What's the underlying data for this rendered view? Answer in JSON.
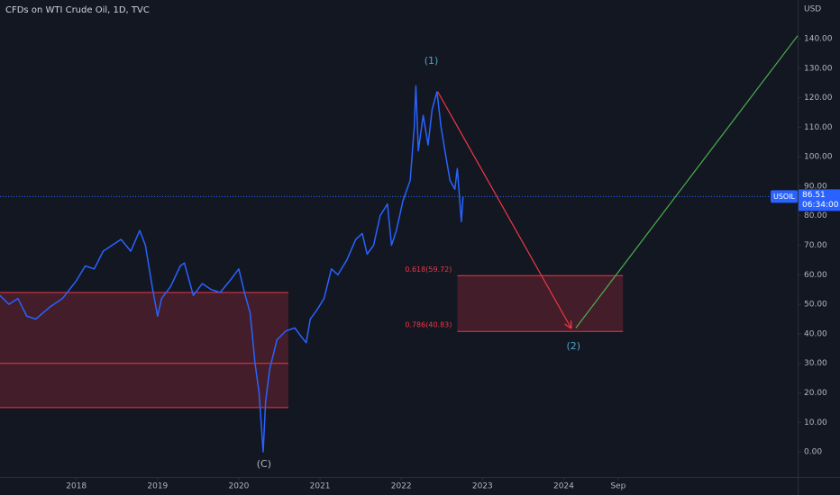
{
  "chart_data": {
    "type": "line",
    "title": "CFDs on WTI Crude Oil, 1D, TVC",
    "currency": "USD",
    "series": [
      {
        "name": "USOIL",
        "color": "#2962ff",
        "x": [
          2017.06,
          2017.17,
          2017.28,
          2017.39,
          2017.5,
          2017.67,
          2017.83,
          2018.0,
          2018.11,
          2018.22,
          2018.33,
          2018.44,
          2018.55,
          2018.67,
          2018.78,
          2018.85,
          2018.94,
          2019.0,
          2019.05,
          2019.16,
          2019.28,
          2019.33,
          2019.44,
          2019.55,
          2019.66,
          2019.77,
          2019.89,
          2020.0,
          2020.07,
          2020.14,
          2020.2,
          2020.25,
          2020.3,
          2020.33,
          2020.38,
          2020.47,
          2020.58,
          2020.69,
          2020.77,
          2020.83,
          2020.88,
          2020.96,
          2021.05,
          2021.14,
          2021.22,
          2021.33,
          2021.44,
          2021.52,
          2021.58,
          2021.66,
          2021.74,
          2021.83,
          2021.88,
          2021.94,
          2022.02,
          2022.11,
          2022.16,
          2022.18,
          2022.21,
          2022.27,
          2022.33,
          2022.38,
          2022.44,
          2022.49,
          2022.55,
          2022.6,
          2022.66,
          2022.69,
          2022.74,
          2022.76
        ],
        "values": [
          53,
          50,
          52,
          46,
          45,
          49,
          52,
          58,
          63,
          62,
          68,
          70,
          72,
          68,
          75,
          70,
          55,
          46,
          52,
          56,
          63,
          64,
          53,
          57,
          55,
          54,
          58,
          62,
          54,
          47,
          30,
          20,
          0,
          17,
          28,
          38,
          41,
          42,
          39,
          37,
          45,
          48,
          52,
          62,
          60,
          65,
          72,
          74,
          67,
          70,
          80,
          84,
          70,
          75,
          85,
          92,
          110,
          124,
          102,
          114,
          104,
          116,
          122,
          110,
          100,
          92,
          89,
          96,
          78,
          86.51
        ]
      }
    ],
    "last_value": {
      "value": 86.51,
      "label": "86.51",
      "symbol": "USOIL",
      "countdown": "06:34:00"
    },
    "xlim": [
      2017.06,
      2026.88
    ],
    "xticks": [
      {
        "value": 2018,
        "label": "2018"
      },
      {
        "value": 2019,
        "label": "2019"
      },
      {
        "value": 2020,
        "label": "2020"
      },
      {
        "value": 2021,
        "label": "2021"
      },
      {
        "value": 2022,
        "label": "2022"
      },
      {
        "value": 2023,
        "label": "2023"
      },
      {
        "value": 2024,
        "label": "2024"
      },
      {
        "value": 2024.67,
        "label": "Sep"
      }
    ],
    "ylim": [
      -8.5,
      153.1
    ],
    "yticks": [
      {
        "value": 0,
        "label": "0.00"
      },
      {
        "value": 10,
        "label": "10.00"
      },
      {
        "value": 20,
        "label": "20.00"
      },
      {
        "value": 30,
        "label": "30.00"
      },
      {
        "value": 40,
        "label": "40.00"
      },
      {
        "value": 50,
        "label": "50.00"
      },
      {
        "value": 60,
        "label": "60.00"
      },
      {
        "value": 70,
        "label": "70.00"
      },
      {
        "value": 80,
        "label": "80.00"
      },
      {
        "value": 90,
        "label": "90.00"
      },
      {
        "value": 100,
        "label": "100.00"
      },
      {
        "value": 110,
        "label": "110.00"
      },
      {
        "value": 120,
        "label": "120.00"
      },
      {
        "value": 130,
        "label": "130.00"
      },
      {
        "value": 140,
        "label": "140.00"
      }
    ],
    "zones": [
      {
        "x": [
          2017.06,
          2020.61
        ],
        "levels": [
          54,
          30,
          15
        ],
        "color": "#f23645"
      },
      {
        "x": [
          2022.69,
          2024.73
        ],
        "levels": [
          59.72,
          40.83
        ],
        "color": "#f23645",
        "labels": [
          {
            "value": 59.72,
            "label": "0.618(59.72)"
          },
          {
            "value": 40.83,
            "label": "0.786(40.83)"
          }
        ]
      }
    ],
    "trend_lines": [
      {
        "x": [
          2022.45,
          2024.09
        ],
        "y": [
          122,
          42
        ],
        "color": "#f23645",
        "arrow": true
      },
      {
        "x": [
          2024.15,
          2026.88
        ],
        "y": [
          42,
          141
        ],
        "color": "#4caf50",
        "arrow": false
      }
    ],
    "annotations": [
      {
        "text": "(1)",
        "x": 2022.37,
        "y": 132.4,
        "color": "#4fa3c7"
      },
      {
        "text": "(2)",
        "x": 2024.12,
        "y": 35.7,
        "color": "#4fa3c7"
      },
      {
        "text": "(C)",
        "x": 2020.31,
        "y": -4.3,
        "color": "#b2b5be"
      }
    ]
  }
}
